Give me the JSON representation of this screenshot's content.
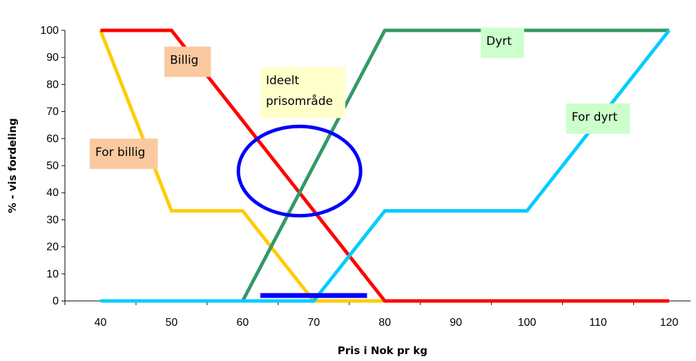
{
  "chart_data": {
    "type": "line",
    "xlabel": "Pris i Nok pr kg",
    "ylabel": "% - vis fordeling",
    "xlim": [
      35,
      123
    ],
    "ylim": [
      0,
      100
    ],
    "x_ticks": [
      40,
      50,
      60,
      70,
      80,
      90,
      100,
      110,
      120
    ],
    "y_ticks": [
      0,
      10,
      20,
      30,
      40,
      50,
      60,
      70,
      80,
      90,
      100
    ],
    "grid": false,
    "series": [
      {
        "color": "#ffcc00",
        "points": [
          [
            40,
            100
          ],
          [
            50,
            33.3
          ],
          [
            60,
            33.3
          ],
          [
            70,
            0
          ],
          [
            80,
            0
          ]
        ]
      },
      {
        "color": "#ff0000",
        "points": [
          [
            40,
            100
          ],
          [
            50,
            100
          ],
          [
            80,
            0
          ],
          [
            120,
            0
          ]
        ]
      },
      {
        "color": "#339966",
        "points": [
          [
            40,
            0
          ],
          [
            60,
            0
          ],
          [
            80,
            100
          ],
          [
            120,
            100
          ]
        ]
      },
      {
        "color": "#00ccff",
        "points": [
          [
            40,
            0
          ],
          [
            70,
            0
          ],
          [
            80,
            33.3
          ],
          [
            100,
            33.3
          ],
          [
            120,
            100
          ]
        ]
      }
    ],
    "annotations": [
      {
        "lines": [
          "For billig"
        ],
        "bg": "#fbc9a0",
        "at": [
          38.5,
          60
        ]
      },
      {
        "lines": [
          "Billig"
        ],
        "bg": "#fbc9a0",
        "at": [
          49,
          94
        ]
      },
      {
        "lines": [
          "Ideelt",
          "prisområde"
        ],
        "bg": "#ffffcc",
        "at": [
          62.5,
          86.5
        ]
      },
      {
        "lines": [
          "Dyrt"
        ],
        "bg": "#ccffcc",
        "at": [
          93.5,
          101
        ]
      },
      {
        "lines": [
          "For dyrt"
        ],
        "bg": "#ccffcc",
        "at": [
          105.5,
          73
        ]
      }
    ],
    "ideal_ellipse": {
      "center": [
        68,
        48
      ],
      "rx": 8.6,
      "ry": 16.5,
      "color": "#0000ff"
    },
    "ideal_range_bar": {
      "from": 62.5,
      "to": 77.5,
      "y": 2,
      "color": "#0000ff"
    }
  }
}
